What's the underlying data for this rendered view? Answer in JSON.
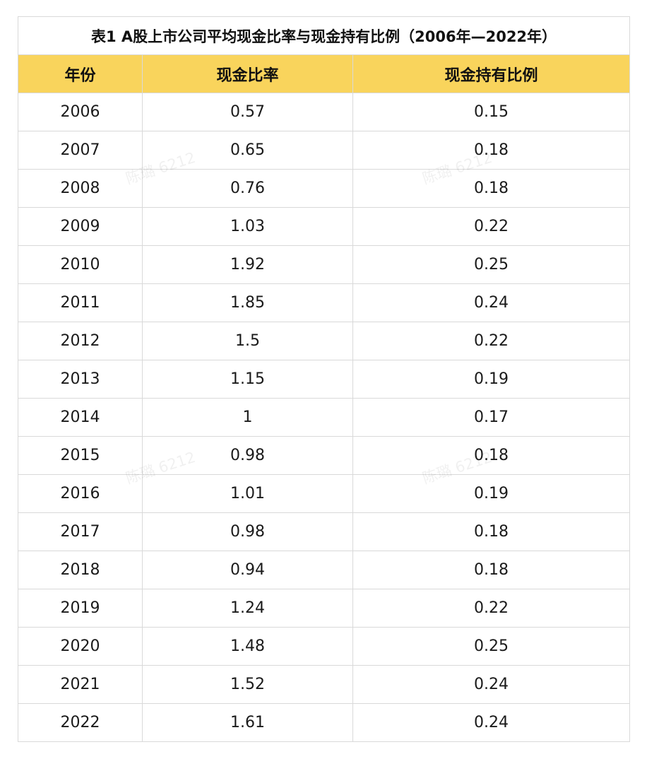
{
  "table": {
    "title": "表1 A股上市公司平均现金比率与现金持有比例（2006年—2022年）",
    "headers": [
      "年份",
      "现金比率",
      "现金持有比例"
    ],
    "rows": [
      {
        "year": "2006",
        "cash_ratio": "0.57",
        "cash_holding": "0.15"
      },
      {
        "year": "2007",
        "cash_ratio": "0.65",
        "cash_holding": "0.18"
      },
      {
        "year": "2008",
        "cash_ratio": "0.76",
        "cash_holding": "0.18"
      },
      {
        "year": "2009",
        "cash_ratio": "1.03",
        "cash_holding": "0.22"
      },
      {
        "year": "2010",
        "cash_ratio": "1.92",
        "cash_holding": "0.25"
      },
      {
        "year": "2011",
        "cash_ratio": "1.85",
        "cash_holding": "0.24"
      },
      {
        "year": "2012",
        "cash_ratio": "1.5",
        "cash_holding": "0.22"
      },
      {
        "year": "2013",
        "cash_ratio": "1.15",
        "cash_holding": "0.19"
      },
      {
        "year": "2014",
        "cash_ratio": "1",
        "cash_holding": "0.17"
      },
      {
        "year": "2015",
        "cash_ratio": "0.98",
        "cash_holding": "0.18"
      },
      {
        "year": "2016",
        "cash_ratio": "1.01",
        "cash_holding": "0.19"
      },
      {
        "year": "2017",
        "cash_ratio": "0.98",
        "cash_holding": "0.18"
      },
      {
        "year": "2018",
        "cash_ratio": "0.94",
        "cash_holding": "0.18"
      },
      {
        "year": "2019",
        "cash_ratio": "1.24",
        "cash_holding": "0.22"
      },
      {
        "year": "2020",
        "cash_ratio": "1.48",
        "cash_holding": "0.25"
      },
      {
        "year": "2021",
        "cash_ratio": "1.52",
        "cash_holding": "0.24"
      },
      {
        "year": "2022",
        "cash_ratio": "1.61",
        "cash_holding": "0.24"
      }
    ]
  },
  "watermark": {
    "text": "陈璐 6212"
  },
  "colors": {
    "header_bg": "#f9d45c",
    "border": "#d9d9d9"
  }
}
